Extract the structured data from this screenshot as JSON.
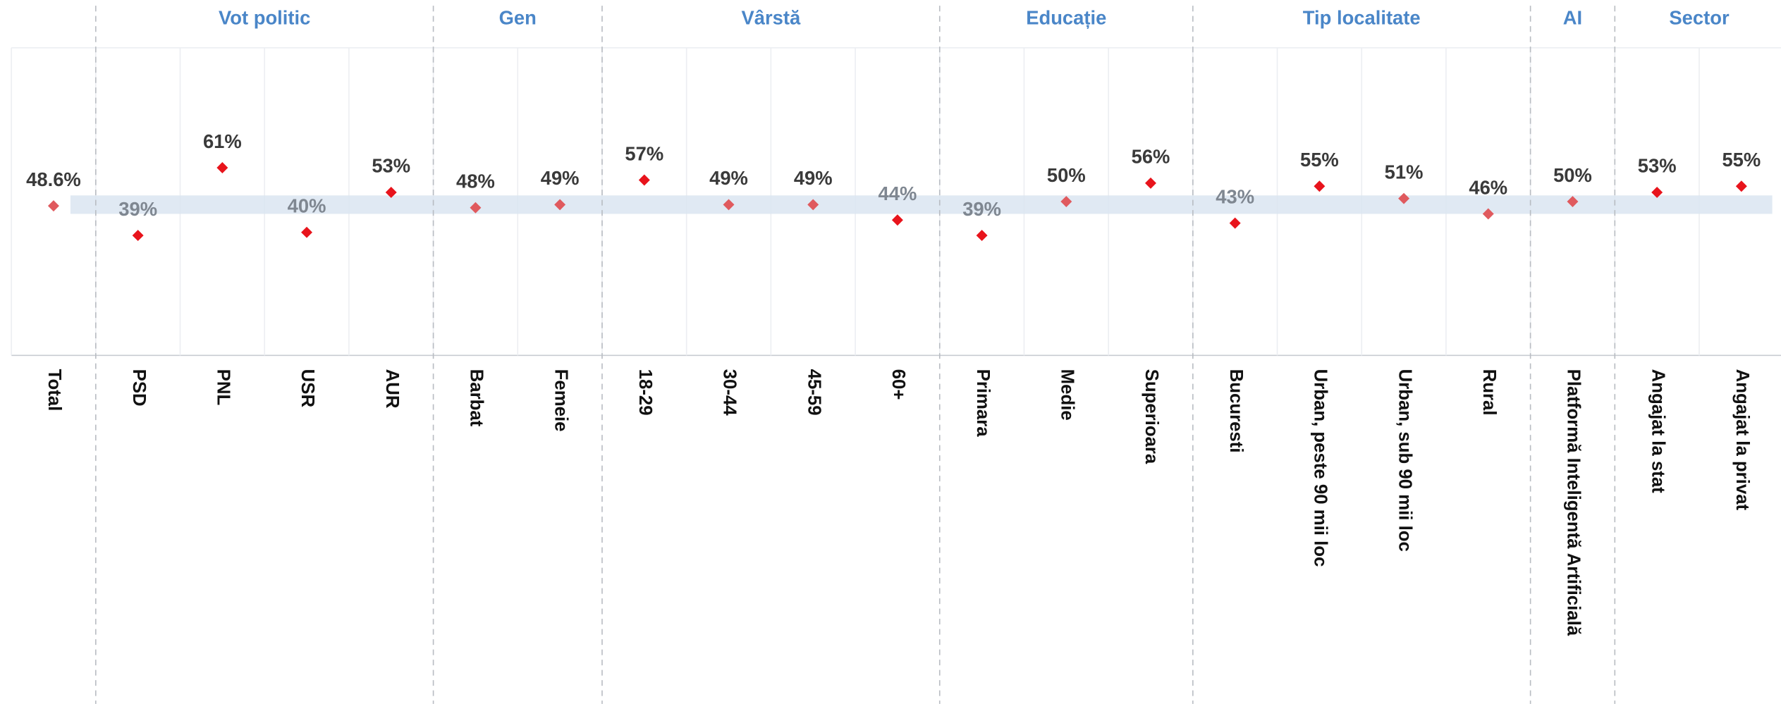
{
  "chart_data": {
    "type": "dot",
    "categories": [
      "Total",
      "PSD",
      "PNL",
      "USR",
      "AUR",
      "Barbat",
      "Femeie",
      "18-29",
      "30-44",
      "45-59",
      "60+",
      "Primara",
      "Medie",
      "Superioara",
      "Bucuresti",
      "Urban, peste 90 mii loc",
      "Urban, sub 90 mii loc",
      "Rural",
      "Platformă Inteligentă Artificială",
      "Angajat la stat",
      "Angajat la privat"
    ],
    "values": [
      48.6,
      39,
      61,
      40,
      53,
      48,
      49,
      57,
      49,
      49,
      44,
      39,
      50,
      56,
      43,
      55,
      51,
      46,
      50,
      53,
      55
    ],
    "value_labels": [
      "48.6%",
      "39%",
      "61%",
      "40%",
      "53%",
      "48%",
      "49%",
      "57%",
      "49%",
      "49%",
      "44%",
      "39%",
      "50%",
      "56%",
      "43%",
      "55%",
      "51%",
      "46%",
      "50%",
      "53%",
      "55%"
    ],
    "groups": [
      {
        "name": "Vot politic",
        "span": [
          1,
          4
        ]
      },
      {
        "name": "Gen",
        "span": [
          5,
          6
        ]
      },
      {
        "name": "Vârstă",
        "span": [
          7,
          10
        ]
      },
      {
        "name": "Educație",
        "span": [
          11,
          13
        ]
      },
      {
        "name": "Tip localitate",
        "span": [
          14,
          17
        ]
      },
      {
        "name": "AI",
        "span": [
          18,
          18
        ]
      },
      {
        "name": "Sector",
        "span": [
          19,
          20
        ]
      }
    ],
    "reference_band": [
      46,
      52
    ],
    "color": "#e8141c",
    "ylim": [
      0,
      100
    ]
  }
}
